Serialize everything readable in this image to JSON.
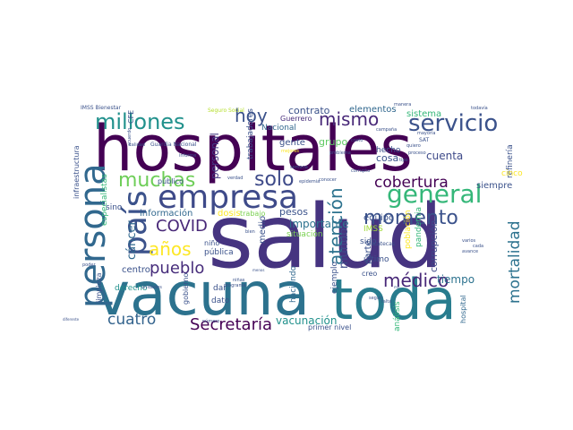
{
  "words": [
    {
      "text": "salud",
      "color": "#463480"
    },
    {
      "text": "hospitales",
      "color": "#440154"
    },
    {
      "text": "vacuna",
      "color": "#2c728e"
    },
    {
      "text": "toda",
      "color": "#287c8e"
    },
    {
      "text": "persona",
      "color": "#31688e"
    },
    {
      "text": "empresa",
      "color": "#3e4a89"
    },
    {
      "text": "país",
      "color": "#3b528b"
    },
    {
      "text": "general",
      "color": "#35b779"
    },
    {
      "text": "millones",
      "color": "#21918c"
    },
    {
      "text": "servicio",
      "color": "#3b528b"
    },
    {
      "text": "mismo",
      "color": "#482878"
    },
    {
      "text": "hoy",
      "color": "#3b528b"
    },
    {
      "text": "solo",
      "color": "#3e4a89"
    },
    {
      "text": "muchas",
      "color": "#6ece58"
    },
    {
      "text": "cobertura",
      "color": "#440154"
    },
    {
      "text": "momento",
      "color": "#3b528b"
    },
    {
      "text": "COVID",
      "color": "#482878"
    },
    {
      "text": "años",
      "color": "#fde725"
    },
    {
      "text": "pueblo",
      "color": "#472d7b"
    },
    {
      "text": "atención",
      "color": "#2c728e"
    },
    {
      "text": "médico",
      "color": "#482878"
    },
    {
      "text": "mortalidad",
      "color": "#2c728e"
    },
    {
      "text": "Secretaría",
      "color": "#440154"
    },
    {
      "text": "cuatro",
      "color": "#33638d"
    },
    {
      "text": "cáncer",
      "color": "#31688e"
    },
    {
      "text": "mundo",
      "color": "#3e4a89"
    },
    {
      "text": "vacunación",
      "color": "#21918c"
    },
    {
      "text": "información",
      "color": "#31688e"
    },
    {
      "text": "importante",
      "color": "#2c728e"
    },
    {
      "text": "grupo",
      "color": "#5ec962"
    },
    {
      "text": "contrato",
      "color": "#3b528b"
    },
    {
      "text": "Guerrero",
      "color": "#472d7b"
    },
    {
      "text": "elementos",
      "color": "#31688e"
    },
    {
      "text": "sistema",
      "color": "#35b779"
    },
    {
      "text": "cuenta",
      "color": "#3e4a89"
    },
    {
      "text": "cosa",
      "color": "#3b528b"
    },
    {
      "text": "hecho",
      "color": "#3b528b"
    },
    {
      "text": "gente",
      "color": "#3b528b"
    },
    {
      "text": "Nacional",
      "color": "#31688e"
    },
    {
      "text": "personal",
      "color": "#443983"
    },
    {
      "text": "trabajadores",
      "color": "#3b528b"
    },
    {
      "text": "tiempo",
      "color": "#2c728e"
    },
    {
      "text": "parte",
      "color": "#3b528b"
    },
    {
      "text": "equipo",
      "color": "#3b528b"
    },
    {
      "text": "siempre",
      "color": "#3b528b"
    },
    {
      "text": "dosis",
      "color": "#fde725"
    },
    {
      "text": "trabajo",
      "color": "#7ad151"
    },
    {
      "text": "pesos",
      "color": "#3b528b"
    },
    {
      "text": "medio",
      "color": "#3b528b"
    },
    {
      "text": "situación",
      "color": "#7ad151"
    },
    {
      "text": "IMSS",
      "color": "#a0da39"
    },
    {
      "text": "sido",
      "color": "#3b528b"
    },
    {
      "text": "último",
      "color": "#3b528b"
    },
    {
      "text": "población",
      "color": "#fde725"
    },
    {
      "text": "pandemia",
      "color": "#35b779"
    },
    {
      "text": "corrupción",
      "color": "#3e4a89"
    },
    {
      "text": "centro",
      "color": "#3b528b"
    },
    {
      "text": "pública",
      "color": "#3b528b"
    },
    {
      "text": "niño",
      "color": "#3b528b"
    },
    {
      "text": "derecho",
      "color": "#21918c"
    },
    {
      "text": "dar",
      "color": "#3b528b"
    },
    {
      "text": "dato",
      "color": "#3b528b"
    },
    {
      "text": "haciendo",
      "color": "#31688e"
    },
    {
      "text": "ejemplo",
      "color": "#3b528b"
    },
    {
      "text": "creo",
      "color": "#3b528b"
    },
    {
      "text": "análisis",
      "color": "#35b779"
    },
    {
      "text": "hospital",
      "color": "#31688e"
    },
    {
      "text": "primer nivel",
      "color": "#3b528b"
    },
    {
      "text": "gobierno",
      "color": "#3b528b"
    },
    {
      "text": "limpieza",
      "color": "#3b528b"
    },
    {
      "text": "sino",
      "color": "#3b528b"
    },
    {
      "text": "público",
      "color": "#3b528b"
    },
    {
      "text": "especialistas",
      "color": "#35b779"
    },
    {
      "text": "refinería",
      "color": "#3b528b"
    },
    {
      "text": "cinco",
      "color": "#fde725"
    },
    {
      "text": "infraestructura",
      "color": "#3b528b"
    },
    {
      "text": "IMSS Bienestar",
      "color": "#3b528b"
    },
    {
      "text": "CFE",
      "color": "#3b528b"
    },
    {
      "text": "Seguro Social",
      "color": "#b5de2b"
    },
    {
      "text": "Guardia Nacional",
      "color": "#3b528b"
    },
    {
      "text": "calidad",
      "color": "#3b528b"
    },
    {
      "text": "Zacatecas",
      "color": "#3b528b"
    },
    {
      "text": "tipo",
      "color": "#3b528b"
    },
    {
      "text": "costo",
      "color": "#3b528b"
    },
    {
      "text": "campaña",
      "color": "#3b528b"
    },
    {
      "text": "mayoría",
      "color": "#3b528b"
    },
    {
      "text": "SAT",
      "color": "#3b528b"
    },
    {
      "text": "quiero",
      "color": "#3b528b"
    },
    {
      "text": "proceso",
      "color": "#3b528b"
    },
    {
      "text": "manera",
      "color": "#3b528b"
    },
    {
      "text": "todavía",
      "color": "#3b528b"
    },
    {
      "text": "varios",
      "color": "#3b528b"
    },
    {
      "text": "cada",
      "color": "#3b528b"
    },
    {
      "text": "avance",
      "color": "#3b528b"
    },
    {
      "text": "conocer",
      "color": "#3b528b"
    },
    {
      "text": "corrupto",
      "color": "#3b528b"
    },
    {
      "text": "semana",
      "color": "#3b528b"
    },
    {
      "text": "epidemia",
      "color": "#3b528b"
    },
    {
      "text": "problema",
      "color": "#3b528b"
    },
    {
      "text": "mejores",
      "color": "#fde725"
    },
    {
      "text": "informe",
      "color": "#3b528b"
    },
    {
      "text": "acuerdo",
      "color": "#3b528b"
    },
    {
      "text": "verdad",
      "color": "#3b528b"
    },
    {
      "text": "bien",
      "color": "#3b528b"
    },
    {
      "text": "poder",
      "color": "#3b528b"
    },
    {
      "text": "unidades",
      "color": "#3b528b"
    },
    {
      "text": "número",
      "color": "#3b528b"
    },
    {
      "text": "programa",
      "color": "#3b528b"
    },
    {
      "text": "niñas",
      "color": "#3b528b"
    },
    {
      "text": "seguir",
      "color": "#3b528b"
    },
    {
      "text": "falta",
      "color": "#3b528b"
    },
    {
      "text": "diferente",
      "color": "#3b528b"
    },
    {
      "text": "menos",
      "color": "#3b528b"
    },
    {
      "text": "mil",
      "color": "#3b528b"
    }
  ]
}
